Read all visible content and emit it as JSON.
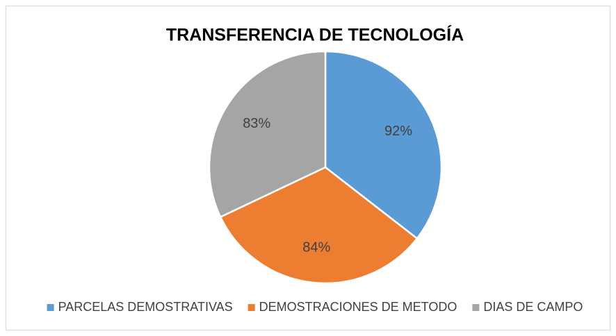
{
  "chart_data": {
    "type": "pie",
    "title": "TRANSFERENCIA DE TECNOLOGÍA",
    "categories": [
      "PARCELAS DEMOSTRATIVAS",
      "DEMOSTRACIONES DE METODO",
      "DIAS DE CAMPO"
    ],
    "values": [
      92,
      84,
      83
    ],
    "value_labels": [
      "92%",
      "84%",
      "83%"
    ],
    "colors": [
      "#5b9bd5",
      "#ed7d31",
      "#a5a5a5"
    ],
    "legend": "bottom"
  }
}
